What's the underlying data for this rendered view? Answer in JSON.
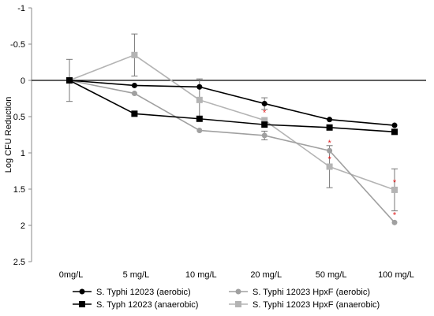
{
  "chart_data": {
    "type": "line",
    "title": "",
    "xlabel": "",
    "ylabel": "Log CFU Reduction",
    "y_inverted": true,
    "ylim": [
      -1,
      2.5
    ],
    "y_ticks": [
      "-1",
      "-0.5",
      "0",
      "0.5",
      "1",
      "1.5",
      "2",
      "2.5"
    ],
    "y_tick_values": [
      -1,
      -0.5,
      0,
      0.5,
      1,
      1.5,
      2,
      2.5
    ],
    "categories": [
      "0mg/L",
      "5 mg/L",
      "10 mg/L",
      "20 mg/L",
      "50 mg/L",
      "100 mg/L"
    ],
    "grid": false,
    "legend_position": "bottom",
    "series": [
      {
        "name": "S. Typhi 12023 (aerobic)",
        "color": "#000000",
        "marker": "circle",
        "values": [
          0,
          0.07,
          0.09,
          0.32,
          0.54,
          0.62
        ],
        "errors": [
          0,
          0,
          0,
          0.08,
          0,
          0
        ]
      },
      {
        "name": "S. Typhi 12023 HpxF (aerobic)",
        "color": "#a0a0a0",
        "marker": "circle",
        "values": [
          0,
          0.18,
          0.69,
          0.76,
          0.97,
          1.96
        ],
        "errors": [
          0,
          0,
          0,
          0.06,
          0,
          0
        ],
        "significant": [
          false,
          false,
          false,
          false,
          true,
          true
        ]
      },
      {
        "name": "S. Typh 12023 (anaerobic)",
        "color": "#000000",
        "marker": "square",
        "values": [
          0,
          0.46,
          0.53,
          0.61,
          0.65,
          0.71
        ],
        "errors": [
          0,
          0,
          0,
          0,
          0,
          0
        ]
      },
      {
        "name": "S. Typhi 12023 HpxF (anaerobic)",
        "color": "#b4b4b4",
        "marker": "square",
        "values": [
          0,
          -0.35,
          0.27,
          0.55,
          1.19,
          1.51
        ],
        "errors": [
          0.29,
          0.29,
          0.29,
          0,
          0.29,
          0.29
        ],
        "significant": [
          false,
          false,
          false,
          true,
          true,
          true
        ]
      }
    ],
    "significance_marker": "*"
  }
}
